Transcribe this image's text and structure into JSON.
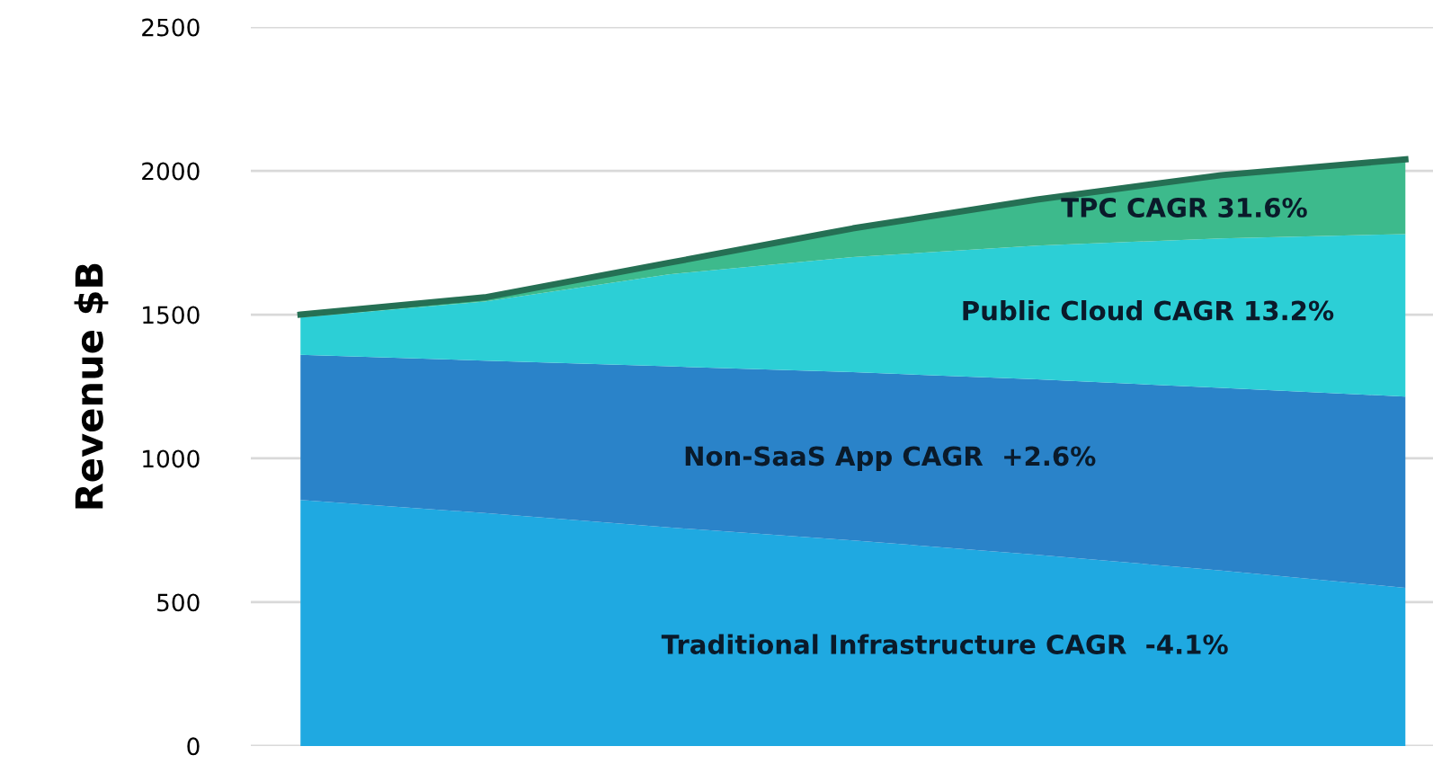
{
  "chart_data": {
    "type": "area",
    "stacked": true,
    "ylabel": "Revenue $B",
    "categories": [
      null,
      null,
      null,
      null,
      null,
      null,
      null
    ],
    "series": [
      {
        "name": "Traditional Infrastructure CAGR  -4.1%",
        "color": "#1fa9e1",
        "values": [
          855,
          810,
          760,
          715,
          665,
          610,
          550
        ]
      },
      {
        "name": "Non-SaaS App CAGR  +2.6%",
        "color": "#2a83c9",
        "values": [
          505,
          530,
          560,
          585,
          610,
          635,
          665
        ]
      },
      {
        "name": "Public Cloud CAGR 13.2%",
        "color": "#2ccfd6",
        "values": [
          130,
          205,
          320,
          400,
          465,
          520,
          565
        ]
      },
      {
        "name": "TPC CAGR 31.6%",
        "color": "#3dba8c",
        "values": [
          10,
          15,
          40,
          100,
          160,
          220,
          260
        ]
      }
    ],
    "ylim": [
      0,
      2500
    ],
    "yticks": [
      0,
      500,
      1000,
      1500,
      2000,
      2500
    ],
    "grid": "y",
    "tick_labels": "y",
    "legend": false
  }
}
